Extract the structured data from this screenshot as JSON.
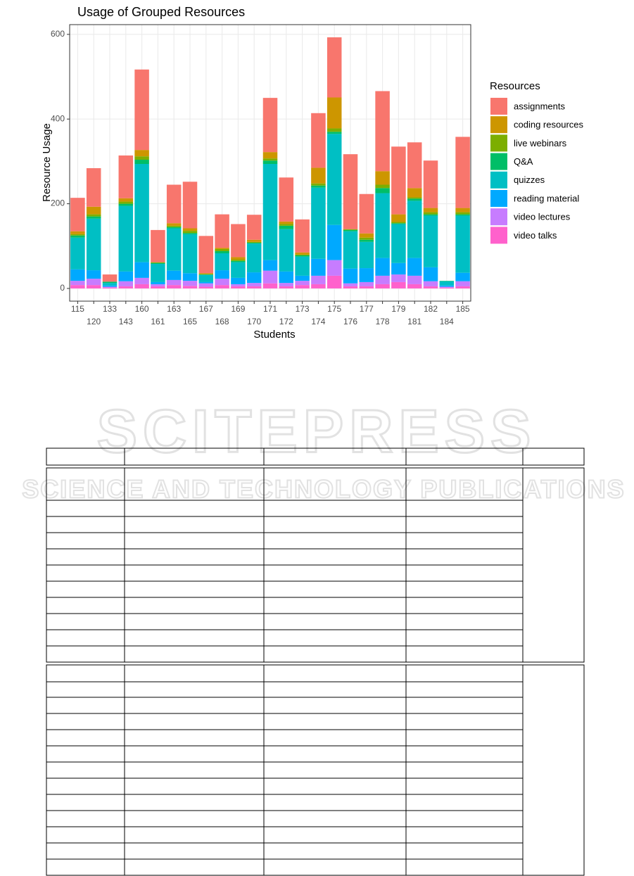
{
  "chart_data": {
    "type": "stacked_bar",
    "title": "Usage of Grouped Resources",
    "x_label": "Students",
    "y_label": "Resource Usage",
    "legend_title": "Resources",
    "legend": "right",
    "grid": true,
    "categories": [
      "115",
      "120",
      "133",
      "143",
      "160",
      "161",
      "163",
      "165",
      "167",
      "168",
      "169",
      "170",
      "171",
      "172",
      "173",
      "174",
      "175",
      "176",
      "177",
      "178",
      "179",
      "181",
      "182",
      "184",
      "185"
    ],
    "ylim": [
      -30,
      623
    ],
    "yticks": [
      0,
      200,
      400,
      600
    ],
    "series": [
      {
        "name": "assignments",
        "color": "#F8766D",
        "values": [
          79,
          91,
          17,
          101,
          190,
          76,
          91,
          110,
          88,
          79,
          78,
          59,
          128,
          104,
          78,
          129,
          142,
          177,
          93,
          189,
          160,
          108,
          112,
          0,
          168
        ]
      },
      {
        "name": "coding resources",
        "color": "#CD9600",
        "values": [
          7,
          18,
          0,
          8,
          15,
          0,
          6,
          6,
          2,
          3,
          6,
          5,
          15,
          6,
          5,
          37,
          73,
          0,
          10,
          32,
          18,
          22,
          10,
          0,
          10
        ]
      },
      {
        "name": "live webinars",
        "color": "#7CAE00",
        "values": [
          3,
          5,
          0,
          5,
          8,
          2,
          3,
          5,
          1,
          5,
          3,
          2,
          5,
          4,
          2,
          5,
          8,
          2,
          5,
          8,
          3,
          3,
          5,
          0,
          5
        ]
      },
      {
        "name": "Q&A",
        "color": "#00BE67",
        "values": [
          5,
          5,
          3,
          5,
          10,
          2,
          3,
          3,
          1,
          5,
          3,
          2,
          8,
          8,
          3,
          5,
          5,
          3,
          5,
          12,
          2,
          5,
          3,
          1,
          3
        ]
      },
      {
        "name": "quizzes",
        "color": "#00BFC4",
        "values": [
          75,
          122,
          6,
          155,
          232,
          43,
          100,
          92,
          17,
          40,
          37,
          68,
          227,
          100,
          45,
          168,
          215,
          88,
          62,
          153,
          92,
          135,
          122,
          10,
          135
        ]
      },
      {
        "name": "reading material",
        "color": "#00A9FF",
        "values": [
          27,
          20,
          3,
          23,
          37,
          5,
          22,
          18,
          3,
          20,
          15,
          25,
          25,
          27,
          12,
          40,
          83,
          35,
          33,
          42,
          27,
          42,
          33,
          3,
          20
        ]
      },
      {
        "name": "video lectures",
        "color": "#C77CFF",
        "values": [
          10,
          15,
          2,
          12,
          15,
          5,
          12,
          12,
          8,
          15,
          5,
          8,
          30,
          8,
          10,
          20,
          37,
          7,
          10,
          20,
          18,
          20,
          12,
          2,
          12
        ]
      },
      {
        "name": "video talks",
        "color": "#FF61CC",
        "values": [
          8,
          8,
          2,
          5,
          10,
          5,
          8,
          6,
          4,
          8,
          5,
          5,
          12,
          5,
          8,
          10,
          30,
          5,
          5,
          10,
          15,
          10,
          5,
          2,
          5
        ]
      }
    ]
  },
  "watermark": {
    "title": "SCITEPRESS",
    "subtitle": "SCIENCE AND TECHNOLOGY PUBLICATIONS"
  }
}
